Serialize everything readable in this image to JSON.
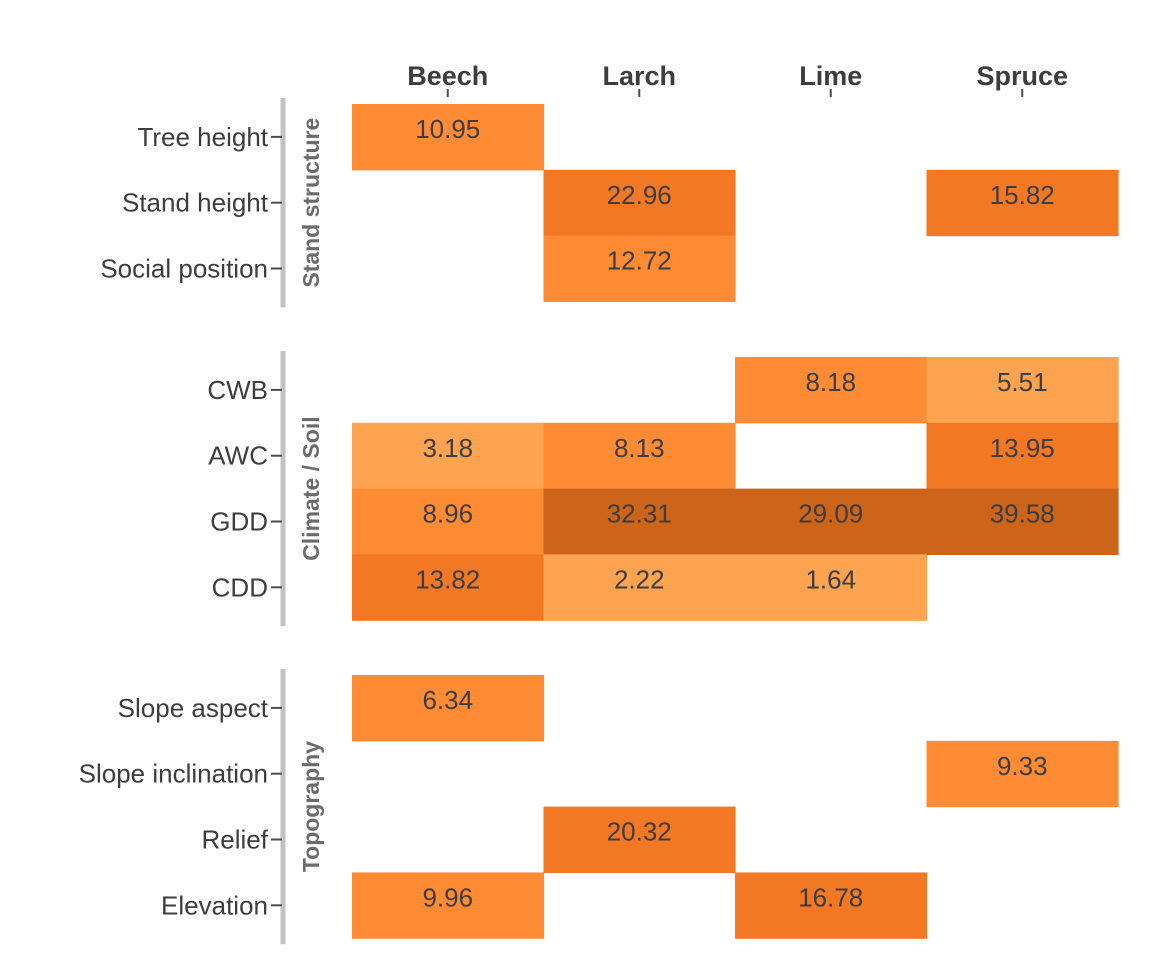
{
  "chart_data": {
    "type": "heatmap",
    "title": "",
    "xlabel": "",
    "ylabel": "",
    "columns": [
      "Beech",
      "Larch",
      "Lime",
      "Spruce"
    ],
    "groups": [
      {
        "name": "Stand structure",
        "rows": [
          {
            "label": "Tree height",
            "values": [
              10.95,
              null,
              null,
              null
            ]
          },
          {
            "label": "Stand height",
            "values": [
              null,
              22.96,
              null,
              15.82
            ]
          },
          {
            "label": "Social position",
            "values": [
              null,
              12.72,
              null,
              null
            ]
          }
        ]
      },
      {
        "name": "Climate / Soil",
        "rows": [
          {
            "label": "CWB",
            "values": [
              null,
              null,
              8.18,
              5.51
            ]
          },
          {
            "label": "AWC",
            "values": [
              3.18,
              8.13,
              null,
              13.95
            ]
          },
          {
            "label": "GDD",
            "values": [
              8.96,
              32.31,
              29.09,
              39.58
            ]
          },
          {
            "label": "CDD",
            "values": [
              13.82,
              2.22,
              1.64,
              null
            ]
          }
        ]
      },
      {
        "name": "Topography",
        "rows": [
          {
            "label": "Slope aspect",
            "values": [
              6.34,
              null,
              null,
              null
            ]
          },
          {
            "label": "Slope inclination",
            "values": [
              null,
              null,
              null,
              9.33
            ]
          },
          {
            "label": "Relief",
            "values": [
              null,
              20.32,
              null,
              null
            ]
          },
          {
            "label": "Elevation",
            "values": [
              9.96,
              null,
              16.78,
              null
            ]
          }
        ]
      }
    ],
    "colors": {
      "light": "#fea34f",
      "mid": "#ff8c35",
      "strong": "#f37824",
      "dark": "#cc6519",
      "text": "#3d3d3d",
      "group_bar": "#c2c2c2"
    }
  }
}
